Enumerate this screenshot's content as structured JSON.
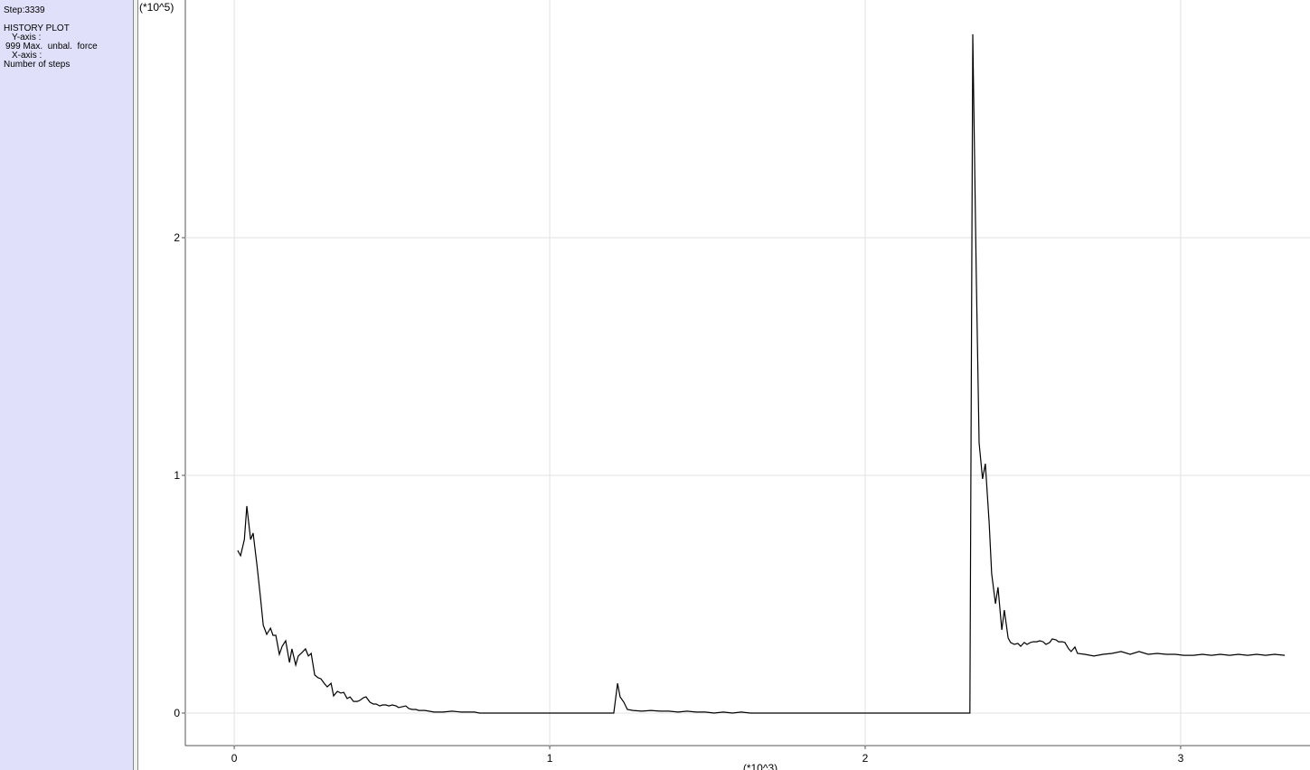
{
  "sidebar": {
    "step": "Step:3339",
    "heading": "HISTORY PLOT",
    "y_axis_label": "Y-axis :",
    "y_axis_value": "999 Max.  unbal.  force",
    "x_axis_label": "X-axis :",
    "x_axis_value": "Number of steps"
  },
  "chart_data": {
    "type": "line",
    "color": "#000000",
    "grid": true,
    "y_multiplier": "(*10^5)",
    "x_multiplier": "(*10^3)",
    "xlim": [
      -0.155,
      3.41
    ],
    "xticks": [
      0,
      1,
      2,
      3
    ],
    "ylim": [
      -0.137,
      3.0
    ],
    "yticks": [
      0,
      1,
      2
    ],
    "x": [
      0.011,
      0.02,
      0.032,
      0.04,
      0.052,
      0.06,
      0.072,
      0.083,
      0.092,
      0.103,
      0.115,
      0.123,
      0.132,
      0.143,
      0.152,
      0.163,
      0.175,
      0.183,
      0.195,
      0.203,
      0.215,
      0.226,
      0.235,
      0.244,
      0.255,
      0.266,
      0.275,
      0.287,
      0.295,
      0.307,
      0.315,
      0.327,
      0.338,
      0.347,
      0.358,
      0.367,
      0.378,
      0.39,
      0.398,
      0.41,
      0.418,
      0.43,
      0.441,
      0.45,
      0.461,
      0.47,
      0.481,
      0.49,
      0.501,
      0.513,
      0.521,
      0.533,
      0.544,
      0.553,
      0.564,
      0.576,
      0.585,
      0.605,
      0.633,
      0.662,
      0.691,
      0.719,
      0.748,
      0.762,
      0.777,
      1.203,
      1.215,
      1.223,
      1.235,
      1.246,
      1.264,
      1.292,
      1.321,
      1.35,
      1.378,
      1.407,
      1.436,
      1.464,
      1.493,
      1.521,
      1.55,
      1.579,
      1.607,
      1.636,
      2.332,
      2.341,
      2.352,
      2.361,
      2.372,
      2.381,
      2.393,
      2.401,
      2.413,
      2.421,
      2.433,
      2.441,
      2.453,
      2.461,
      2.473,
      2.484,
      2.493,
      2.504,
      2.513,
      2.524,
      2.533,
      2.544,
      2.553,
      2.564,
      2.573,
      2.585,
      2.593,
      2.605,
      2.613,
      2.625,
      2.633,
      2.645,
      2.653,
      2.665,
      2.673,
      2.696,
      2.725,
      2.754,
      2.782,
      2.811,
      2.84,
      2.868,
      2.897,
      2.926,
      2.954,
      2.983,
      3.01,
      3.04,
      3.069,
      3.097,
      3.126,
      3.155,
      3.183,
      3.212,
      3.241,
      3.269,
      3.298,
      3.33
    ],
    "values": [
      0.684,
      0.662,
      0.73,
      0.871,
      0.73,
      0.757,
      0.624,
      0.49,
      0.369,
      0.331,
      0.357,
      0.327,
      0.327,
      0.247,
      0.281,
      0.304,
      0.213,
      0.27,
      0.202,
      0.24,
      0.255,
      0.27,
      0.24,
      0.251,
      0.16,
      0.148,
      0.144,
      0.122,
      0.11,
      0.125,
      0.072,
      0.091,
      0.084,
      0.087,
      0.061,
      0.068,
      0.049,
      0.049,
      0.053,
      0.065,
      0.068,
      0.046,
      0.038,
      0.038,
      0.03,
      0.034,
      0.034,
      0.03,
      0.034,
      0.03,
      0.023,
      0.027,
      0.03,
      0.019,
      0.015,
      0.015,
      0.011,
      0.011,
      0.004,
      0.004,
      0.008,
      0.004,
      0.004,
      0.004,
      0,
      0,
      0.125,
      0.068,
      0.046,
      0.015,
      0.011,
      0.008,
      0.011,
      0.008,
      0.008,
      0.004,
      0.008,
      0.004,
      0.004,
      0,
      0.004,
      0,
      0.004,
      0,
      0,
      2.856,
      1.859,
      1.137,
      0.985,
      1.049,
      0.802,
      0.586,
      0.46,
      0.529,
      0.35,
      0.433,
      0.316,
      0.297,
      0.289,
      0.293,
      0.281,
      0.297,
      0.289,
      0.297,
      0.3,
      0.3,
      0.304,
      0.3,
      0.289,
      0.297,
      0.312,
      0.308,
      0.3,
      0.3,
      0.297,
      0.27,
      0.259,
      0.278,
      0.251,
      0.247,
      0.24,
      0.247,
      0.251,
      0.259,
      0.247,
      0.259,
      0.247,
      0.251,
      0.247,
      0.247,
      0.243,
      0.243,
      0.247,
      0.243,
      0.247,
      0.243,
      0.247,
      0.243,
      0.247,
      0.243,
      0.247,
      0.243
    ]
  }
}
